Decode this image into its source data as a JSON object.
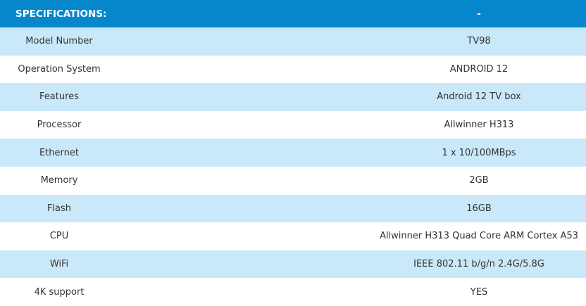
{
  "table": {
    "header": [
      "SPECIFICATIONS:",
      "-"
    ],
    "rows": [
      [
        "Model Number",
        "TV98"
      ],
      [
        "Operation System",
        "ANDROID 12"
      ],
      [
        "Features",
        "Android 12 TV box"
      ],
      [
        "Processor",
        "Allwinner H313"
      ],
      [
        "Ethernet",
        "1 x 10/100MBps"
      ],
      [
        "Memory",
        "2GB"
      ],
      [
        "Flash",
        "16GB"
      ],
      [
        "CPU",
        "Allwinner H313 Quad Core ARM Cortex A53"
      ],
      [
        "WiFi",
        "IEEE 802.11 b/g/n 2.4G/5.8G"
      ],
      [
        "4K support",
        "YES"
      ]
    ]
  }
}
